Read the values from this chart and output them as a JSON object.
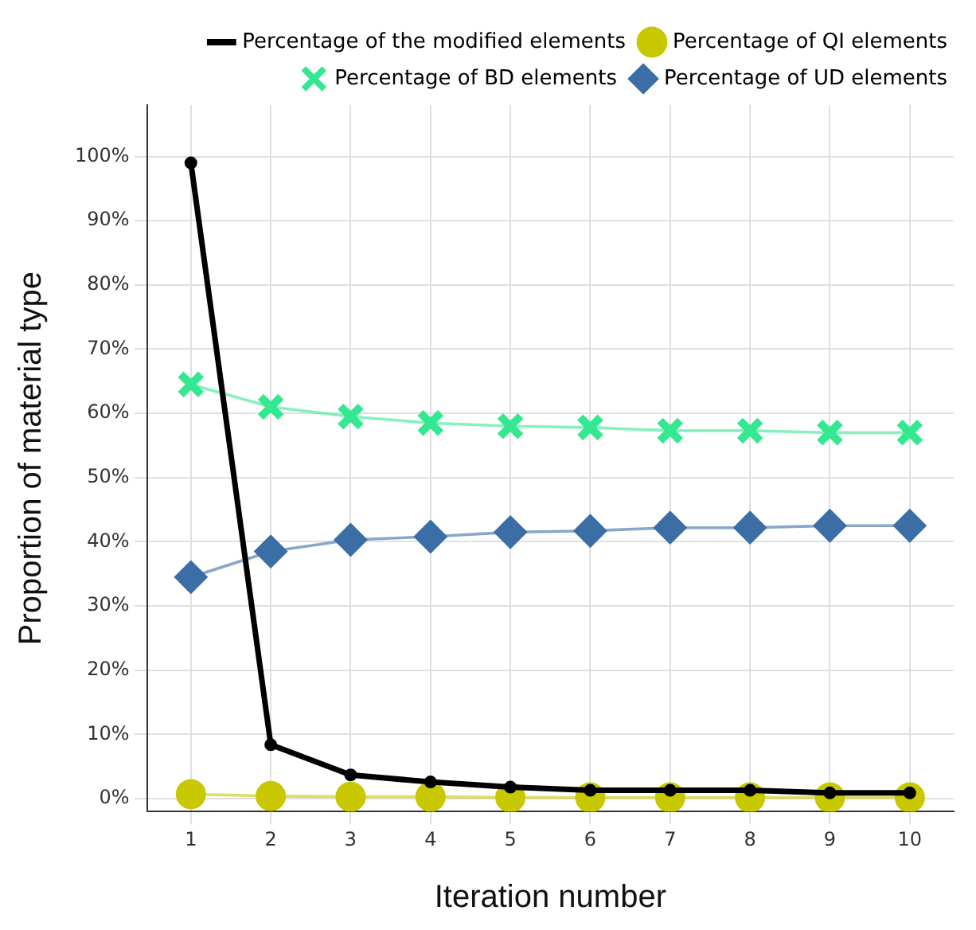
{
  "chart_data": {
    "type": "line",
    "xlabel": "Iteration number",
    "ylabel": "Proportion of material type",
    "x": [
      1,
      2,
      3,
      4,
      5,
      6,
      7,
      8,
      9,
      10
    ],
    "xlim": [
      0.45,
      10.55
    ],
    "xticks": [
      1,
      2,
      3,
      4,
      5,
      6,
      7,
      8,
      9,
      10
    ],
    "ylim": [
      -2,
      108
    ],
    "yticks": [
      {
        "value": 0,
        "label": "0%"
      },
      {
        "value": 10,
        "label": "10%"
      },
      {
        "value": 20,
        "label": "20%"
      },
      {
        "value": 30,
        "label": "30%"
      },
      {
        "value": 40,
        "label": "40%"
      },
      {
        "value": 50,
        "label": "50%"
      },
      {
        "value": 60,
        "label": "60%"
      },
      {
        "value": 70,
        "label": "70%"
      },
      {
        "value": 80,
        "label": "80%"
      },
      {
        "value": 90,
        "label": "90%"
      },
      {
        "value": 100,
        "label": "100%"
      }
    ],
    "grid": true,
    "legend": "top right",
    "series": [
      {
        "name": "Percentage of the modified elements",
        "color": "#000000",
        "marker": "circle",
        "values": [
          99,
          8.4,
          3.7,
          2.6,
          1.8,
          1.3,
          1.3,
          1.3,
          0.9,
          0.9
        ]
      },
      {
        "name": "Percentage of QI elements",
        "color": "#c8c800",
        "marker": "circle",
        "values": [
          0.7,
          0.4,
          0.3,
          0.3,
          0.2,
          0.2,
          0.2,
          0.2,
          0.2,
          0.2
        ]
      },
      {
        "name": "Percentage of BD elements",
        "color": "#33e890",
        "marker": "cross",
        "values": [
          64.5,
          61,
          59.5,
          58.5,
          58,
          57.8,
          57.3,
          57.3,
          57,
          57
        ]
      },
      {
        "name": "Percentage of UD elements",
        "color": "#3a6ea5",
        "marker": "diamond",
        "values": [
          34.5,
          38.5,
          40.3,
          40.8,
          41.5,
          41.7,
          42.2,
          42.2,
          42.5,
          42.5
        ]
      }
    ]
  }
}
